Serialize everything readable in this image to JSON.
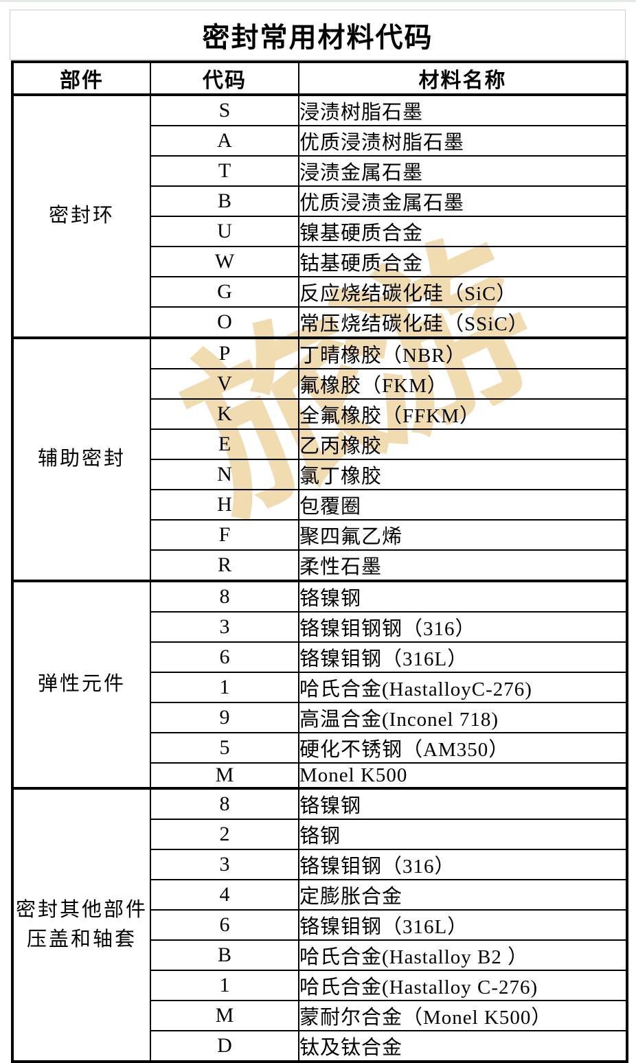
{
  "page": {
    "title": "密封常用材料代码"
  },
  "table": {
    "headers": [
      "部件",
      "代码",
      "材料名称"
    ],
    "groups": [
      {
        "label": "密封环",
        "rows": [
          {
            "code": "S",
            "name": "浸渍树脂石墨"
          },
          {
            "code": "A",
            "name": "优质浸渍树脂石墨"
          },
          {
            "code": "T",
            "name": "浸渍金属石墨"
          },
          {
            "code": "B",
            "name": "优质浸渍金属石墨"
          },
          {
            "code": "U",
            "name": "镍基硬质合金"
          },
          {
            "code": "W",
            "name": "钴基硬质合金"
          },
          {
            "code": "G",
            "name": "反应烧结碳化硅（SiC）"
          },
          {
            "code": "O",
            "name": "常压烧结碳化硅（SSiC）"
          }
        ]
      },
      {
        "label": "辅助密封",
        "rows": [
          {
            "code": "P",
            "name": "丁晴橡胶（NBR）"
          },
          {
            "code": "V",
            "name": "氟橡胶（FKM）"
          },
          {
            "code": "K",
            "name": "全氟橡胶（FFKM）"
          },
          {
            "code": "E",
            "name": "乙丙橡胶"
          },
          {
            "code": "N",
            "name": "氯丁橡胶"
          },
          {
            "code": "H",
            "name": "包覆圈"
          },
          {
            "code": "F",
            "name": "聚四氟乙烯"
          },
          {
            "code": "R",
            "name": "柔性石墨"
          }
        ]
      },
      {
        "label": "弹性元件",
        "rows": [
          {
            "code": "8",
            "name": "铬镍钢"
          },
          {
            "code": "3",
            "name": "铬镍钼钢钢（316）"
          },
          {
            "code": "6",
            "name": "铬镍钼钢（316L）"
          },
          {
            "code": "1",
            "name": "哈氏合金(HastalloyC-276)"
          },
          {
            "code": "9",
            "name": "高温合金(Inconel 718)"
          },
          {
            "code": "5",
            "name": "硬化不锈钢（AM350）"
          },
          {
            "code": "M",
            "name": "Monel K500"
          }
        ]
      },
      {
        "label": "密封其他部件压盖和轴套",
        "rows": [
          {
            "code": "8",
            "name": "铬镍钢"
          },
          {
            "code": "2",
            "name": "铬钢"
          },
          {
            "code": "3",
            "name": "铬镍钼钢（316）"
          },
          {
            "code": "4",
            "name": "定膨胀合金"
          },
          {
            "code": "6",
            "name": "铬镍钼钢（316L）"
          },
          {
            "code": "B",
            "name": "哈氏合金(Hastalloy B2 ）"
          },
          {
            "code": "1",
            "name": "哈氏合金(Hastalloy C-276)"
          },
          {
            "code": "M",
            "name": "蒙耐尔合金（Monel K500）"
          },
          {
            "code": "D",
            "name": "钛及钛合金"
          }
        ]
      }
    ]
  },
  "watermark": {
    "text": "旅游",
    "color": "#f1dcb2"
  },
  "colors": {
    "table_border": "#000000",
    "title_border": "#c5d4c5",
    "text": "#000000",
    "watermark": "#f1dcb2"
  }
}
